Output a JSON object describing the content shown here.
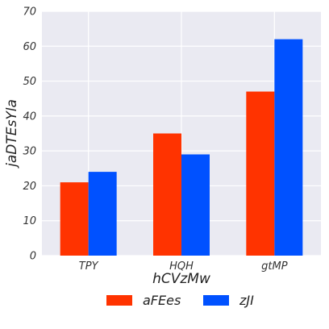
{
  "chart_data": {
    "type": "bar",
    "categories": [
      "TPY",
      "HQH",
      "gtMP"
    ],
    "series": [
      {
        "name": "aFEes",
        "values": [
          21,
          35,
          47
        ],
        "color": "#ff3300"
      },
      {
        "name": "zJI",
        "values": [
          24,
          29,
          62
        ],
        "color": "#0051ff"
      }
    ],
    "xlabel": "hCVzMw",
    "ylabel": "jaDTEsYla",
    "ylim": [
      0,
      70
    ],
    "yticks": [
      0,
      10,
      20,
      30,
      40,
      50,
      60,
      70
    ],
    "grid": true,
    "legend_position": "bottom-center",
    "background_color": "#eaeaf2",
    "grid_color": "#ffffff"
  }
}
